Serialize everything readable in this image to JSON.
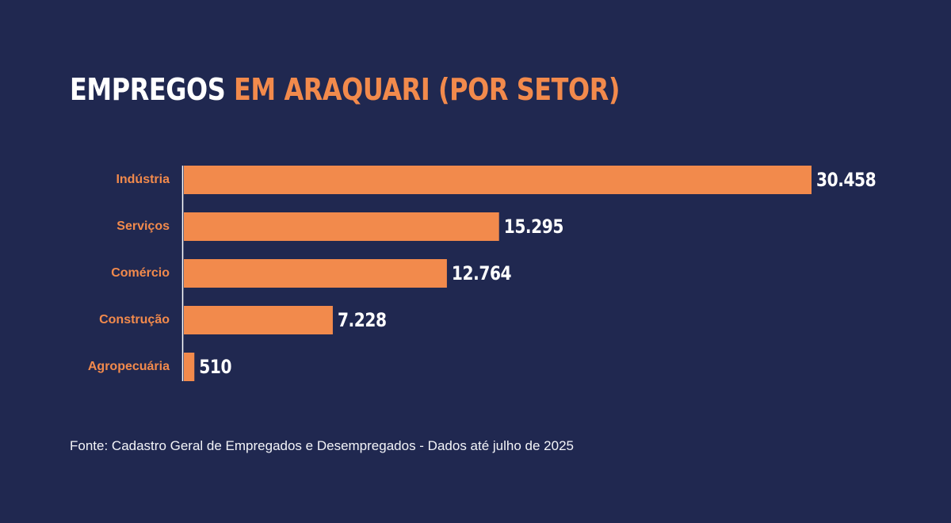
{
  "title": {
    "part1": "EMPREGOS",
    "part2": "EM ARAQUARI (POR SETOR)"
  },
  "source": "Fonte: Cadastro Geral de Empregados e Desempregados - Dados até julho de 2025",
  "colors": {
    "background": "#202850",
    "bar": "#f28a4c",
    "category_label": "#f28a4c",
    "value_label": "#ffffff",
    "axis": "#ffffff"
  },
  "chart_data": {
    "type": "bar",
    "orientation": "horizontal",
    "categories": [
      "Indústria",
      "Serviços",
      "Comércio",
      "Construção",
      "Agropecuária"
    ],
    "values": [
      30458,
      15295,
      12764,
      7228,
      510
    ],
    "value_labels": [
      "30.458",
      "15.295",
      "12.764",
      "7.228",
      "510"
    ],
    "xlim": [
      0,
      30458
    ],
    "grid": false,
    "legend": "none"
  }
}
